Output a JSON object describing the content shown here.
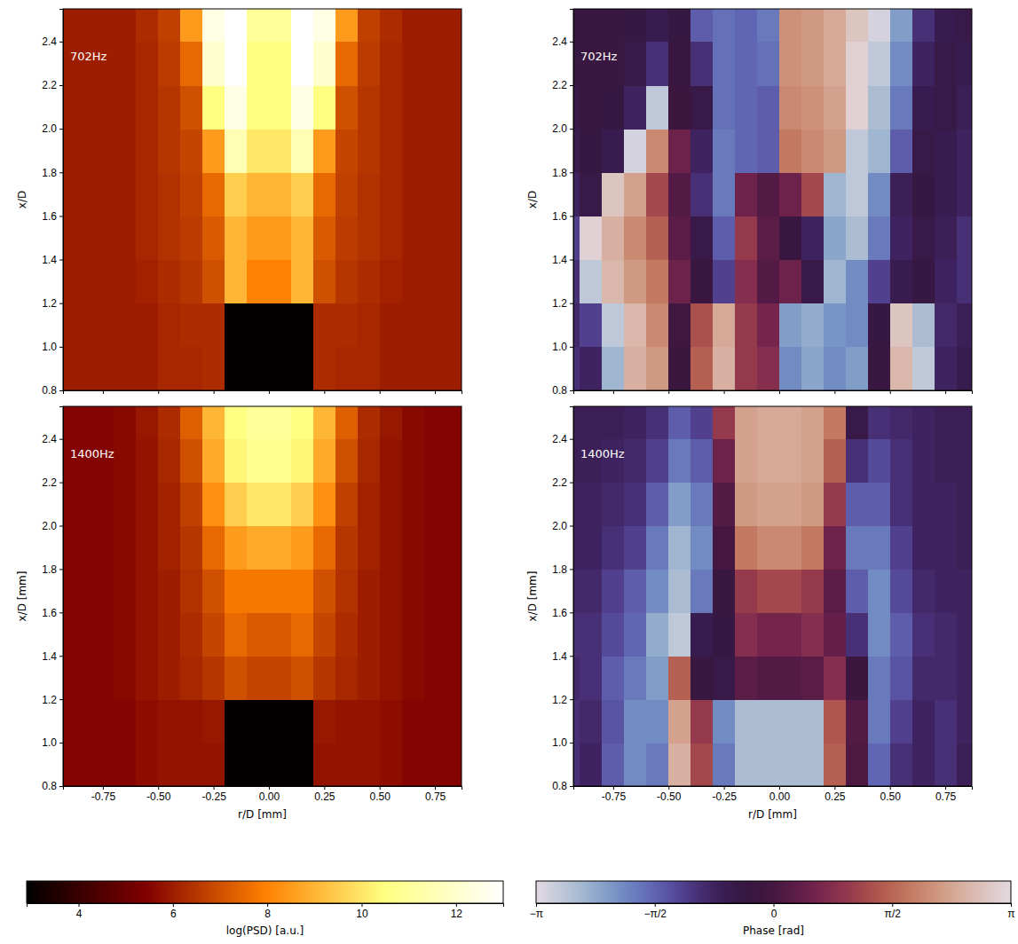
{
  "chart_data": [
    {
      "type": "heatmap",
      "title": "702Hz",
      "color": "afmhot",
      "tick_labels": "y",
      "y_label": "x/D",
      "xlim": [
        -0.93,
        0.87
      ],
      "ylim": [
        0.8,
        2.55
      ],
      "xticks": [
        -0.75,
        -0.5,
        -0.25,
        0,
        0.25,
        0.5,
        0.75
      ],
      "yticks": [
        0.8,
        {
          "value": 1.0,
          "label": "1.0"
        },
        1.2,
        1.4,
        1.6,
        1.8,
        {
          "value": 2.0,
          "label": "2.0"
        },
        2.2,
        2.4
      ],
      "x_edges": [
        -1.0,
        -0.9,
        -0.8,
        -0.7,
        -0.6,
        -0.5,
        -0.4,
        -0.3,
        -0.2,
        -0.1,
        0,
        0.1,
        0.2,
        0.3,
        0.4,
        0.5,
        0.6,
        0.7,
        0.8,
        0.9
      ],
      "y_edges": [
        0.8,
        1.0,
        1.2,
        1.4,
        1.6,
        1.8,
        2.0,
        2.2,
        2.4,
        2.6
      ],
      "cells": [
        [
          6,
          6,
          6,
          6,
          6,
          6.2,
          6.2,
          6.3,
          3,
          3,
          3,
          3,
          6.3,
          6.2,
          6.2,
          6,
          6,
          6,
          6
        ],
        [
          6,
          6,
          6,
          6,
          6,
          6.2,
          6.3,
          6.3,
          3,
          3,
          3,
          3,
          6.3,
          6.3,
          6.2,
          6,
          6,
          6,
          6
        ],
        [
          6,
          6,
          6,
          6,
          6.1,
          6.3,
          6.5,
          7,
          9,
          8,
          8,
          9,
          7,
          6.5,
          6.3,
          6.1,
          6,
          6,
          6
        ],
        [
          6,
          6,
          6,
          6,
          6.2,
          6.4,
          6.6,
          7.2,
          9,
          8.5,
          8.5,
          9,
          7.2,
          6.6,
          6.4,
          6.2,
          6,
          6,
          6
        ],
        [
          6,
          6,
          6,
          6,
          6.2,
          6.4,
          6.7,
          7.5,
          9.5,
          9,
          9,
          9.5,
          7.5,
          6.7,
          6.4,
          6.2,
          6,
          6,
          6
        ],
        [
          6,
          6,
          6,
          6,
          6.2,
          6.5,
          6.8,
          8.5,
          11.5,
          10,
          10,
          11.5,
          8.5,
          6.8,
          6.5,
          6.2,
          6,
          6,
          6
        ],
        [
          6,
          6,
          6,
          6,
          6.2,
          6.5,
          7,
          10.5,
          12.5,
          10.5,
          10.5,
          12.5,
          10.5,
          7,
          6.5,
          6.2,
          6,
          6,
          6
        ],
        [
          6,
          6,
          6,
          6,
          6.2,
          6.6,
          7.5,
          12,
          13,
          10.5,
          10.5,
          13,
          12,
          7.5,
          6.6,
          6.2,
          6,
          6,
          6
        ],
        [
          6,
          6,
          6,
          6,
          6.3,
          6.7,
          8.5,
          12.5,
          13,
          11,
          11,
          13,
          12.5,
          8.5,
          6.7,
          6.3,
          6,
          6,
          6
        ]
      ]
    },
    {
      "type": "heatmap",
      "title": "702Hz",
      "color": "twilight",
      "tick_labels": "y",
      "y_label": "x/D",
      "xlim": [
        -0.93,
        0.87
      ],
      "ylim": [
        0.8,
        2.55
      ],
      "xticks": [
        -0.75,
        -0.5,
        -0.25,
        0,
        0.25,
        0.5,
        0.75
      ],
      "yticks": [
        0.8,
        {
          "value": 1.0,
          "label": "1.0"
        },
        1.2,
        1.4,
        1.6,
        1.8,
        {
          "value": 2.0,
          "label": "2.0"
        },
        2.2,
        2.4
      ],
      "x_edges": [
        -1.0,
        -0.9,
        -0.8,
        -0.7,
        -0.6,
        -0.5,
        -0.4,
        -0.3,
        -0.2,
        -0.1,
        0,
        0.1,
        0.2,
        0.3,
        0.4,
        0.5,
        0.6,
        0.7,
        0.8,
        0.9
      ],
      "y_edges": [
        0.8,
        1.0,
        1.2,
        1.4,
        1.6,
        1.8,
        2.0,
        2.2,
        2.4,
        2.6
      ],
      "cells": [
        [
          -1.0,
          -0.8,
          -2.5,
          2.5,
          2.2,
          -0.2,
          1.5,
          2.5,
          1.0,
          0.8,
          -2.0,
          -2.3,
          -2.0,
          -2.2,
          -0.3,
          2.6,
          -2.8,
          -0.8,
          -0.6
        ],
        [
          -0.9,
          -1.2,
          -2.8,
          2.6,
          2.0,
          -0.1,
          1.3,
          2.4,
          1.0,
          0.6,
          -2.2,
          -2.4,
          -2.1,
          -2.0,
          -0.4,
          2.8,
          -2.6,
          -0.9,
          -0.7
        ],
        [
          -1.0,
          -2.8,
          2.6,
          2.2,
          1.8,
          0.5,
          -0.3,
          -1.2,
          0.8,
          0.2,
          0.5,
          -0.5,
          -2.5,
          -2.0,
          -1.2,
          -0.6,
          -0.4,
          -0.8,
          -1.0
        ],
        [
          -1.2,
          3.0,
          2.5,
          2.0,
          1.5,
          0.3,
          -0.5,
          -1.5,
          1.0,
          0.3,
          -0.3,
          -0.8,
          -2.3,
          -2.6,
          -1.8,
          -0.8,
          -0.5,
          -0.7,
          -1.0
        ],
        [
          -0.8,
          -0.5,
          2.8,
          2.3,
          1.2,
          0.2,
          -1.0,
          -1.8,
          0.5,
          0.2,
          0.5,
          1.2,
          -2.5,
          -2.8,
          -2.0,
          -0.7,
          -0.4,
          -0.6,
          -0.8
        ],
        [
          -0.6,
          -0.4,
          -0.6,
          -3.0,
          2.0,
          0.5,
          -0.8,
          -1.8,
          -1.6,
          -1.5,
          1.8,
          2.0,
          2.2,
          -2.8,
          -2.5,
          -1.5,
          -0.5,
          -0.6,
          -0.8
        ],
        [
          -0.5,
          -0.3,
          -0.4,
          -0.8,
          -2.8,
          -0.2,
          -0.5,
          -1.7,
          -1.6,
          -1.5,
          2.0,
          2.1,
          2.3,
          3.0,
          -2.6,
          -1.8,
          -0.6,
          -0.5,
          -0.7
        ],
        [
          -0.4,
          -0.3,
          -0.3,
          -0.5,
          -1.0,
          -0.3,
          -1.0,
          -1.7,
          -1.6,
          -1.7,
          2.1,
          2.2,
          2.4,
          3.0,
          -2.8,
          -2.0,
          -0.8,
          -0.5,
          -0.6
        ],
        [
          -0.3,
          -0.3,
          -0.3,
          -0.4,
          -0.6,
          -0.4,
          -1.5,
          -1.7,
          -1.6,
          -1.8,
          2.1,
          2.2,
          2.4,
          2.8,
          -3.0,
          -2.2,
          -1.0,
          -0.6,
          -0.5
        ]
      ]
    },
    {
      "type": "heatmap",
      "title": "1400Hz",
      "color": "afmhot",
      "x_label": "r/D [mm]",
      "y_label": "x/D [mm]",
      "xlim": [
        -0.93,
        0.87
      ],
      "ylim": [
        0.8,
        2.55
      ],
      "xticks": [
        {
          "value": -0.75,
          "label": "-0.75"
        },
        {
          "value": -0.5,
          "label": "-0.50"
        },
        {
          "value": -0.25,
          "label": "-0.25"
        },
        {
          "value": 0,
          "label": "0.00"
        },
        {
          "value": 0.25,
          "label": "0.25"
        },
        {
          "value": 0.5,
          "label": "0.50"
        },
        {
          "value": 0.75,
          "label": "0.75"
        }
      ],
      "yticks": [
        0.8,
        {
          "value": 1.0,
          "label": "1.0"
        },
        1.2,
        1.4,
        1.6,
        1.8,
        {
          "value": 2.0,
          "label": "2.0"
        },
        2.2,
        2.4
      ],
      "x_edges": [
        -1.0,
        -0.9,
        -0.8,
        -0.7,
        -0.6,
        -0.5,
        -0.4,
        -0.3,
        -0.2,
        -0.1,
        0,
        0.1,
        0.2,
        0.3,
        0.4,
        0.5,
        0.6,
        0.7,
        0.8,
        0.9
      ],
      "y_edges": [
        0.8,
        1.0,
        1.2,
        1.4,
        1.6,
        1.8,
        2.0,
        2.2,
        2.4,
        2.6
      ],
      "cells": [
        [
          5.5,
          5.5,
          5.5,
          5.5,
          5.7,
          5.8,
          5.8,
          5.8,
          3,
          3,
          3,
          3,
          5.8,
          5.8,
          5.8,
          5.7,
          5.5,
          5.5,
          5.5
        ],
        [
          5.5,
          5.5,
          5.5,
          5.5,
          5.7,
          5.8,
          5.8,
          5.9,
          3,
          3,
          3,
          3,
          5.9,
          5.8,
          5.8,
          5.7,
          5.5,
          5.5,
          5.5
        ],
        [
          5.5,
          5.5,
          5.5,
          5.6,
          5.8,
          6,
          6.2,
          6.5,
          7,
          6.8,
          6.8,
          7,
          6.5,
          6.2,
          6,
          5.8,
          5.6,
          5.5,
          5.5
        ],
        [
          5.5,
          5.5,
          5.5,
          5.6,
          5.8,
          6,
          6.3,
          6.8,
          7.5,
          7.2,
          7.2,
          7.5,
          6.8,
          6.3,
          6,
          5.8,
          5.6,
          5.5,
          5.5
        ],
        [
          5.5,
          5.5,
          5.5,
          5.6,
          5.8,
          6,
          6.4,
          7,
          7.8,
          7.8,
          7.8,
          7.8,
          7,
          6.4,
          6,
          5.8,
          5.6,
          5.5,
          5.5
        ],
        [
          5.5,
          5.5,
          5.5,
          5.6,
          5.8,
          6.1,
          6.5,
          7.5,
          8.5,
          8.8,
          8.8,
          8.5,
          7.5,
          6.5,
          6.1,
          5.8,
          5.6,
          5.5,
          5.5
        ],
        [
          5.5,
          5.5,
          5.5,
          5.6,
          5.8,
          6.1,
          6.7,
          8.3,
          9.5,
          10,
          10,
          9.5,
          8.3,
          6.7,
          6.1,
          5.8,
          5.6,
          5.5,
          5.5
        ],
        [
          5.5,
          5.5,
          5.5,
          5.6,
          5.8,
          6.2,
          7,
          8.8,
          10.3,
          10.8,
          10.8,
          10.3,
          8.8,
          7,
          6.2,
          5.8,
          5.6,
          5.5,
          5.5
        ],
        [
          5.5,
          5.5,
          5.5,
          5.6,
          5.9,
          6.3,
          7.3,
          9,
          10.5,
          11,
          11,
          10.5,
          9,
          7.3,
          6.3,
          5.9,
          5.6,
          5.5,
          5.5
        ]
      ]
    },
    {
      "type": "heatmap",
      "title": "1400Hz",
      "color": "twilight",
      "x_label": "r/D [mm]",
      "y_label": "x/D [mm]",
      "xlim": [
        -0.93,
        0.87
      ],
      "ylim": [
        0.8,
        2.55
      ],
      "xticks": [
        {
          "value": -0.75,
          "label": "-0.75"
        },
        {
          "value": -0.5,
          "label": "-0.50"
        },
        {
          "value": -0.25,
          "label": "-0.25"
        },
        {
          "value": 0,
          "label": "0.00"
        },
        {
          "value": 0.25,
          "label": "0.25"
        },
        {
          "value": 0.5,
          "label": "0.50"
        },
        {
          "value": 0.75,
          "label": "0.75"
        }
      ],
      "yticks": [
        0.8,
        {
          "value": 1.0,
          "label": "1.0"
        },
        1.2,
        1.4,
        1.6,
        1.8,
        {
          "value": 2.0,
          "label": "2.0"
        },
        2.2,
        2.4
      ],
      "x_edges": [
        -1.0,
        -0.9,
        -0.8,
        -0.7,
        -0.6,
        -0.5,
        -0.4,
        -0.3,
        -0.2,
        -0.1,
        0,
        0.1,
        0.2,
        0.3,
        0.4,
        0.5,
        0.6,
        0.7,
        0.8,
        0.9
      ],
      "y_edges": [
        0.8,
        1.0,
        1.2,
        1.4,
        1.6,
        1.8,
        2.0,
        2.2,
        2.4,
        2.6
      ],
      "cells": [
        [
          -1.0,
          -0.8,
          -1.5,
          -2.0,
          -1.8,
          2.5,
          1.2,
          -1.8,
          -2.6,
          -2.6,
          -2.6,
          -2.6,
          1.5,
          0.1,
          -1.6,
          -1.0,
          -0.8,
          -1.0,
          -0.7
        ],
        [
          -1.0,
          -0.9,
          -1.4,
          -2.0,
          -2.0,
          2.3,
          1.0,
          -2.0,
          -2.6,
          -2.6,
          -2.6,
          -2.6,
          1.4,
          0.2,
          -1.8,
          -1.2,
          -0.8,
          -1.0,
          -0.8
        ],
        [
          -0.9,
          -1.0,
          -1.5,
          -1.8,
          -2.2,
          1.5,
          -0.3,
          -0.5,
          0.3,
          0.2,
          0.2,
          0.3,
          0.8,
          -0.2,
          -1.8,
          -1.4,
          -0.9,
          -0.9,
          -0.8
        ],
        [
          -1.0,
          -1.0,
          -1.3,
          -1.6,
          -2.4,
          -2.8,
          -0.6,
          -0.4,
          0.8,
          0.6,
          0.6,
          0.8,
          0.4,
          -1.0,
          -2.0,
          -1.5,
          -1.0,
          -0.9,
          -0.8
        ],
        [
          -0.9,
          -0.9,
          -1.2,
          -1.5,
          -2.0,
          -2.6,
          -1.8,
          -0.3,
          1.0,
          1.2,
          1.2,
          1.0,
          0.3,
          -1.5,
          -2.0,
          -1.3,
          -0.9,
          -0.8,
          -0.8
        ],
        [
          -0.8,
          -0.8,
          -1.0,
          -1.2,
          -1.8,
          -2.5,
          -2.0,
          0.0,
          1.8,
          2.0,
          2.0,
          1.8,
          0.5,
          -1.8,
          -1.8,
          -1.2,
          -0.8,
          -0.8,
          -0.7
        ],
        [
          -0.8,
          -0.8,
          -0.9,
          -1.0,
          -1.5,
          -2.2,
          -1.8,
          0.2,
          2.2,
          2.3,
          2.3,
          2.2,
          1.0,
          -1.5,
          -1.5,
          -1.0,
          -0.8,
          -0.8,
          -0.7
        ],
        [
          -0.7,
          -0.7,
          -0.8,
          -0.9,
          -1.2,
          -1.8,
          -1.5,
          0.5,
          2.3,
          2.4,
          2.4,
          2.3,
          1.5,
          -1.0,
          -1.3,
          -1.0,
          -0.8,
          -0.7,
          -0.7
        ],
        [
          -0.7,
          -0.7,
          -0.7,
          -0.8,
          -1.0,
          -1.5,
          -1.2,
          1.0,
          2.3,
          2.4,
          2.4,
          2.3,
          1.8,
          -0.5,
          -1.0,
          -0.9,
          -0.8,
          -0.7,
          -0.7
        ]
      ]
    },
    {
      "type": "colorbar",
      "title": "log(PSD) [a.u.]",
      "color": "afmhot",
      "xlim": [
        2.9,
        13.0
      ],
      "xticks": [
        4,
        6,
        8,
        10,
        12
      ]
    },
    {
      "type": "colorbar",
      "title": "Phase [rad]",
      "color": "twilight",
      "xlim": [
        -3.14159,
        3.14159
      ],
      "xticks": [
        {
          "value": -3.14159,
          "label": "−π"
        },
        {
          "value": -1.5708,
          "label": "−π/2"
        },
        0,
        {
          "value": 1.5708,
          "label": "π/2"
        },
        {
          "value": 3.14159,
          "label": "π"
        }
      ]
    }
  ]
}
